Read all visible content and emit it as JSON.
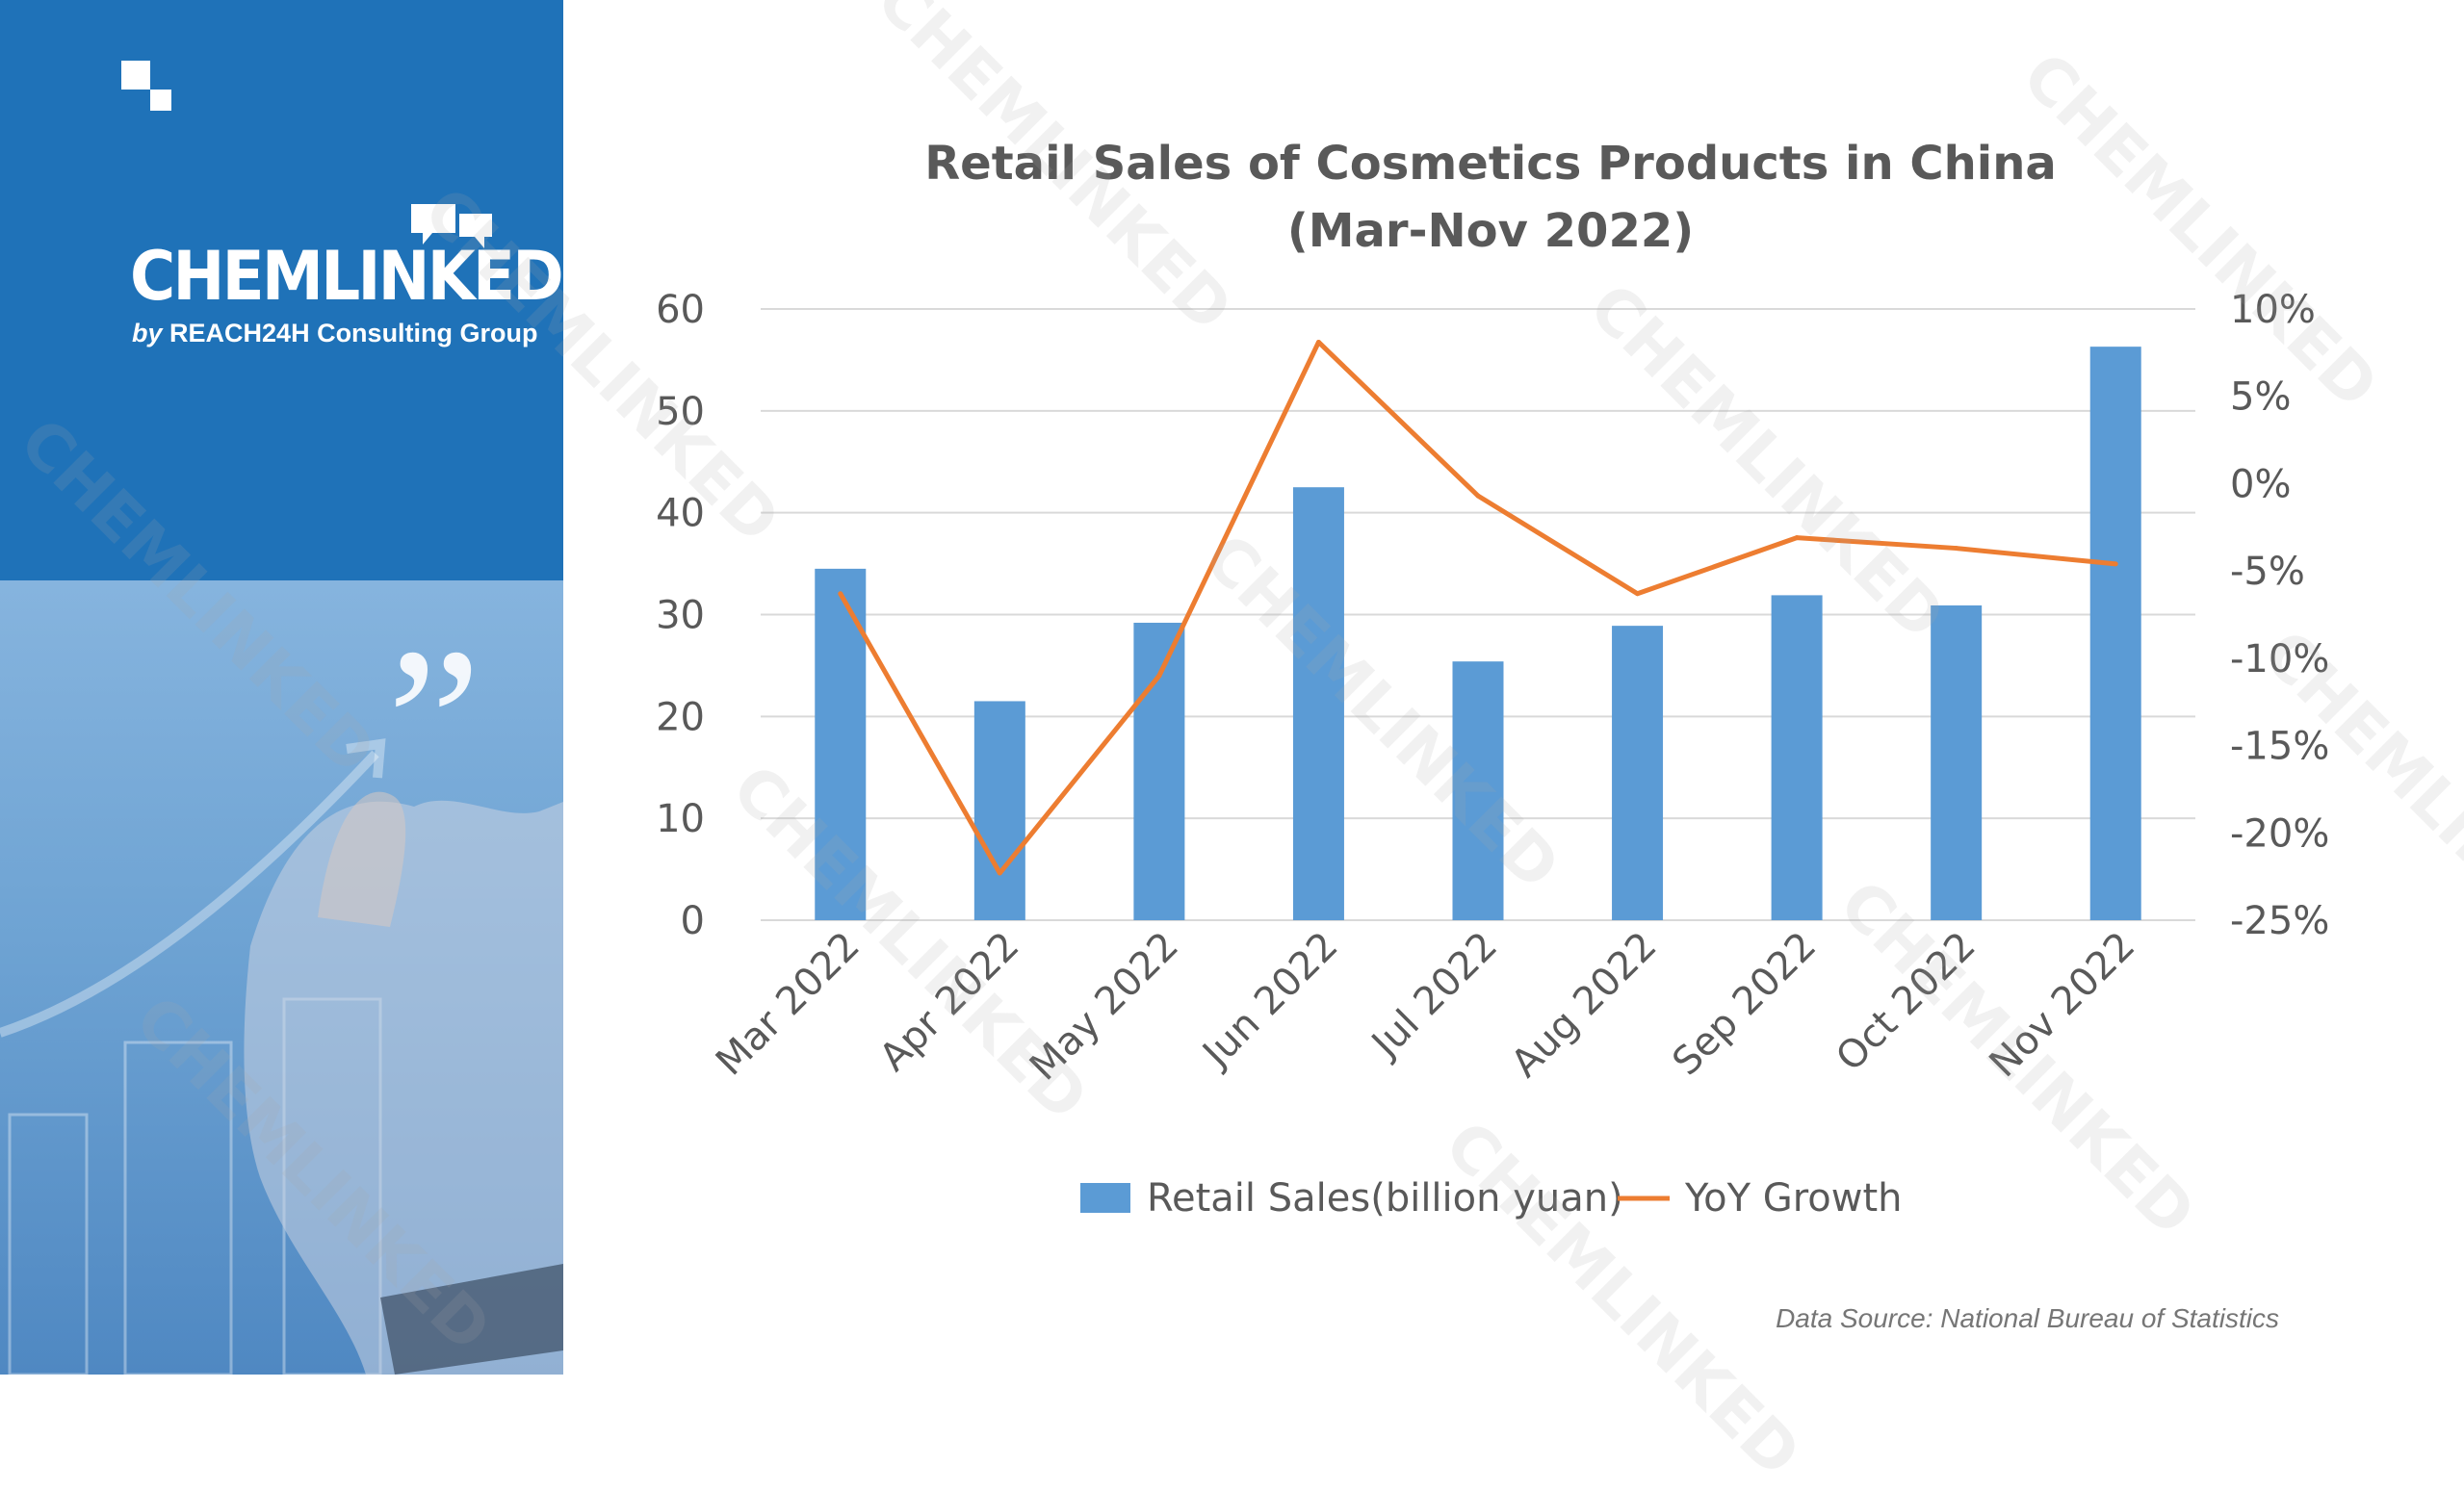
{
  "brand": {
    "name": "CHEMLINKED",
    "sub_by": "by",
    "sub_text": "REACH24H Consulting Group",
    "watermark": "CHEMLINKED",
    "watermark_sub": "by REACH24H Consulting Group"
  },
  "colors": {
    "sidebar_blue": "#1f72b8",
    "bar_blue": "#5b9bd5",
    "line_orange": "#ed7d31",
    "grid": "#d9d9d9",
    "text": "#595959"
  },
  "chart_data": {
    "type": "bar",
    "title": "Retail Sales of Cosmetics Products in China",
    "subtitle": "(Mar-Nov 2022)",
    "categories": [
      "Mar 2022",
      "Apr 2022",
      "May 2022",
      "Jun 2022",
      "Jul 2022",
      "Aug 2022",
      "Sep 2022",
      "Oct 2022",
      "Nov 2022"
    ],
    "series": [
      {
        "name": "Retail Sales(billion yuan)",
        "type": "bar",
        "axis": "left",
        "values": [
          34.5,
          21.5,
          29.2,
          42.5,
          25.4,
          28.9,
          31.9,
          30.9,
          56.3
        ]
      },
      {
        "name": "YoY Growth",
        "type": "line",
        "axis": "right",
        "values": [
          -6.3,
          -22.3,
          -11.0,
          8.1,
          -0.7,
          -6.3,
          -3.1,
          -3.7,
          -4.6
        ]
      }
    ],
    "y_left": {
      "min": 0,
      "max": 60,
      "ticks": [
        0,
        10,
        20,
        30,
        40,
        50,
        60
      ]
    },
    "y_right": {
      "min": -25,
      "max": 10,
      "ticks": [
        "-25%",
        "-20%",
        "-15%",
        "-10%",
        "-5%",
        "0%",
        "5%",
        "10%"
      ]
    },
    "grid": true,
    "legend": "bottom"
  },
  "source": "Data Source: National Bureau of Statistics"
}
